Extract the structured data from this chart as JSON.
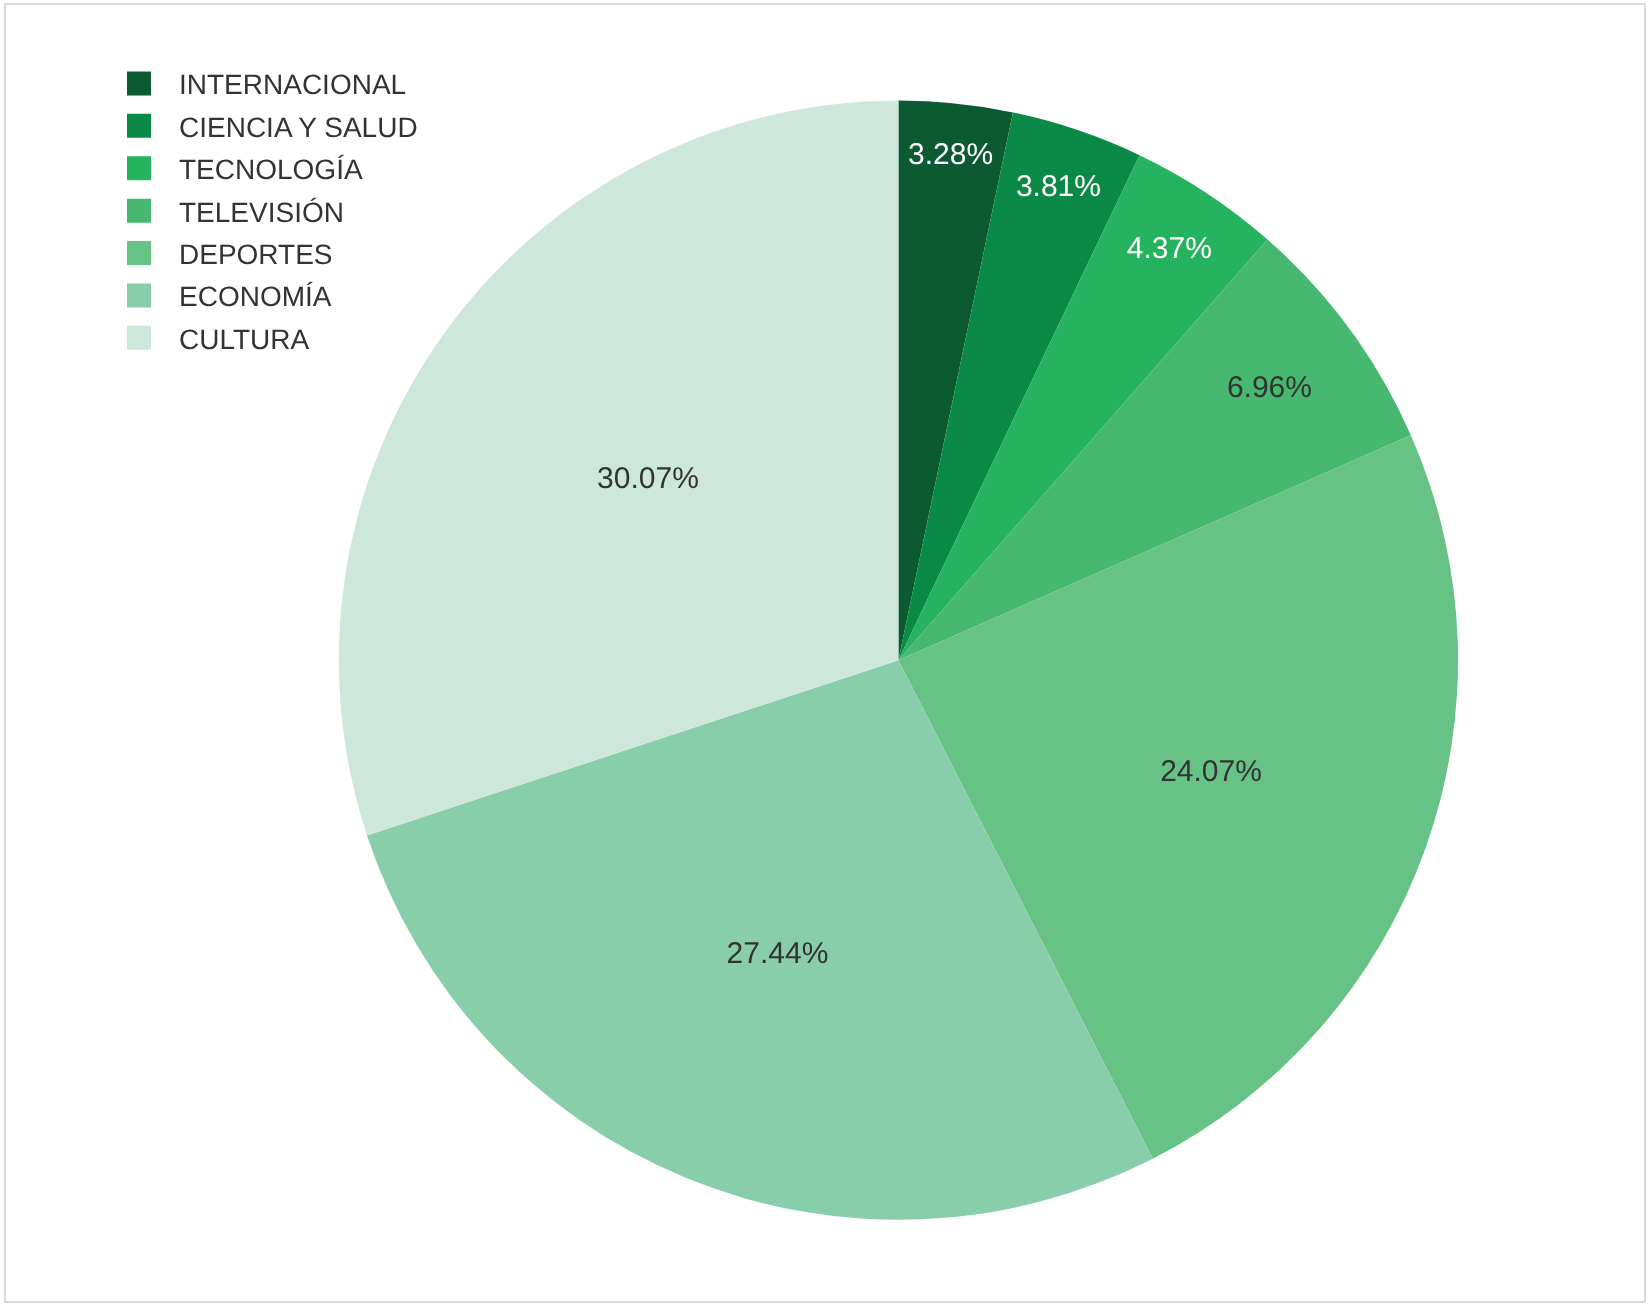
{
  "chart_data": {
    "type": "pie",
    "categories": [
      "INTERNACIONAL",
      "CIENCIA Y SALUD",
      "TECNOLOGÍA",
      "TELEVISIÓN",
      "DEPORTES",
      "ECONOMÍA",
      "CULTURA"
    ],
    "values": [
      3.28,
      3.81,
      4.37,
      6.96,
      24.07,
      27.44,
      30.07
    ],
    "value_labels": [
      "3.28%",
      "3.81%",
      "4.37%",
      "6.96%",
      "24.07%",
      "27.44%",
      "30.07%"
    ],
    "colors": [
      "#0b5a32",
      "#0b8a47",
      "#25b35f",
      "#47b86f",
      "#67c286",
      "#89ceab",
      "#cde8da"
    ],
    "legend": "top left"
  }
}
